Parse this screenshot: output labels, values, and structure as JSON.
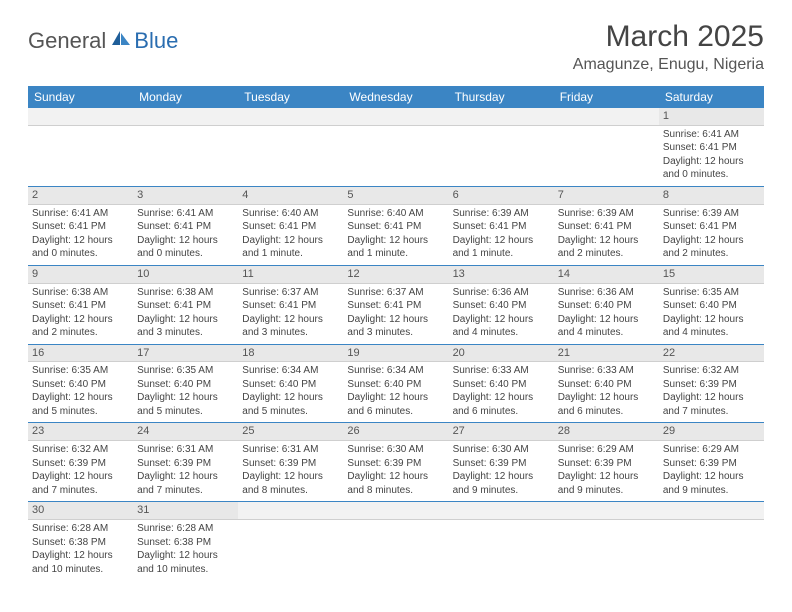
{
  "logo": {
    "text1": "General",
    "text2": "Blue"
  },
  "title": "March 2025",
  "location": "Amagunze, Enugu, Nigeria",
  "colors": {
    "header_bg": "#3b85c4",
    "header_text": "#ffffff",
    "cell_border": "#3b85c4",
    "daynum_bg": "#e8e8e8",
    "logo_blue": "#2a6db0"
  },
  "day_labels": [
    "Sunday",
    "Monday",
    "Tuesday",
    "Wednesday",
    "Thursday",
    "Friday",
    "Saturday"
  ],
  "weeks": [
    [
      {
        "blank": true
      },
      {
        "blank": true
      },
      {
        "blank": true
      },
      {
        "blank": true
      },
      {
        "blank": true
      },
      {
        "blank": true
      },
      {
        "num": "1",
        "sunrise": "Sunrise: 6:41 AM",
        "sunset": "Sunset: 6:41 PM",
        "daylight1": "Daylight: 12 hours",
        "daylight2": "and 0 minutes."
      }
    ],
    [
      {
        "num": "2",
        "sunrise": "Sunrise: 6:41 AM",
        "sunset": "Sunset: 6:41 PM",
        "daylight1": "Daylight: 12 hours",
        "daylight2": "and 0 minutes."
      },
      {
        "num": "3",
        "sunrise": "Sunrise: 6:41 AM",
        "sunset": "Sunset: 6:41 PM",
        "daylight1": "Daylight: 12 hours",
        "daylight2": "and 0 minutes."
      },
      {
        "num": "4",
        "sunrise": "Sunrise: 6:40 AM",
        "sunset": "Sunset: 6:41 PM",
        "daylight1": "Daylight: 12 hours",
        "daylight2": "and 1 minute."
      },
      {
        "num": "5",
        "sunrise": "Sunrise: 6:40 AM",
        "sunset": "Sunset: 6:41 PM",
        "daylight1": "Daylight: 12 hours",
        "daylight2": "and 1 minute."
      },
      {
        "num": "6",
        "sunrise": "Sunrise: 6:39 AM",
        "sunset": "Sunset: 6:41 PM",
        "daylight1": "Daylight: 12 hours",
        "daylight2": "and 1 minute."
      },
      {
        "num": "7",
        "sunrise": "Sunrise: 6:39 AM",
        "sunset": "Sunset: 6:41 PM",
        "daylight1": "Daylight: 12 hours",
        "daylight2": "and 2 minutes."
      },
      {
        "num": "8",
        "sunrise": "Sunrise: 6:39 AM",
        "sunset": "Sunset: 6:41 PM",
        "daylight1": "Daylight: 12 hours",
        "daylight2": "and 2 minutes."
      }
    ],
    [
      {
        "num": "9",
        "sunrise": "Sunrise: 6:38 AM",
        "sunset": "Sunset: 6:41 PM",
        "daylight1": "Daylight: 12 hours",
        "daylight2": "and 2 minutes."
      },
      {
        "num": "10",
        "sunrise": "Sunrise: 6:38 AM",
        "sunset": "Sunset: 6:41 PM",
        "daylight1": "Daylight: 12 hours",
        "daylight2": "and 3 minutes."
      },
      {
        "num": "11",
        "sunrise": "Sunrise: 6:37 AM",
        "sunset": "Sunset: 6:41 PM",
        "daylight1": "Daylight: 12 hours",
        "daylight2": "and 3 minutes."
      },
      {
        "num": "12",
        "sunrise": "Sunrise: 6:37 AM",
        "sunset": "Sunset: 6:41 PM",
        "daylight1": "Daylight: 12 hours",
        "daylight2": "and 3 minutes."
      },
      {
        "num": "13",
        "sunrise": "Sunrise: 6:36 AM",
        "sunset": "Sunset: 6:40 PM",
        "daylight1": "Daylight: 12 hours",
        "daylight2": "and 4 minutes."
      },
      {
        "num": "14",
        "sunrise": "Sunrise: 6:36 AM",
        "sunset": "Sunset: 6:40 PM",
        "daylight1": "Daylight: 12 hours",
        "daylight2": "and 4 minutes."
      },
      {
        "num": "15",
        "sunrise": "Sunrise: 6:35 AM",
        "sunset": "Sunset: 6:40 PM",
        "daylight1": "Daylight: 12 hours",
        "daylight2": "and 4 minutes."
      }
    ],
    [
      {
        "num": "16",
        "sunrise": "Sunrise: 6:35 AM",
        "sunset": "Sunset: 6:40 PM",
        "daylight1": "Daylight: 12 hours",
        "daylight2": "and 5 minutes."
      },
      {
        "num": "17",
        "sunrise": "Sunrise: 6:35 AM",
        "sunset": "Sunset: 6:40 PM",
        "daylight1": "Daylight: 12 hours",
        "daylight2": "and 5 minutes."
      },
      {
        "num": "18",
        "sunrise": "Sunrise: 6:34 AM",
        "sunset": "Sunset: 6:40 PM",
        "daylight1": "Daylight: 12 hours",
        "daylight2": "and 5 minutes."
      },
      {
        "num": "19",
        "sunrise": "Sunrise: 6:34 AM",
        "sunset": "Sunset: 6:40 PM",
        "daylight1": "Daylight: 12 hours",
        "daylight2": "and 6 minutes."
      },
      {
        "num": "20",
        "sunrise": "Sunrise: 6:33 AM",
        "sunset": "Sunset: 6:40 PM",
        "daylight1": "Daylight: 12 hours",
        "daylight2": "and 6 minutes."
      },
      {
        "num": "21",
        "sunrise": "Sunrise: 6:33 AM",
        "sunset": "Sunset: 6:40 PM",
        "daylight1": "Daylight: 12 hours",
        "daylight2": "and 6 minutes."
      },
      {
        "num": "22",
        "sunrise": "Sunrise: 6:32 AM",
        "sunset": "Sunset: 6:39 PM",
        "daylight1": "Daylight: 12 hours",
        "daylight2": "and 7 minutes."
      }
    ],
    [
      {
        "num": "23",
        "sunrise": "Sunrise: 6:32 AM",
        "sunset": "Sunset: 6:39 PM",
        "daylight1": "Daylight: 12 hours",
        "daylight2": "and 7 minutes."
      },
      {
        "num": "24",
        "sunrise": "Sunrise: 6:31 AM",
        "sunset": "Sunset: 6:39 PM",
        "daylight1": "Daylight: 12 hours",
        "daylight2": "and 7 minutes."
      },
      {
        "num": "25",
        "sunrise": "Sunrise: 6:31 AM",
        "sunset": "Sunset: 6:39 PM",
        "daylight1": "Daylight: 12 hours",
        "daylight2": "and 8 minutes."
      },
      {
        "num": "26",
        "sunrise": "Sunrise: 6:30 AM",
        "sunset": "Sunset: 6:39 PM",
        "daylight1": "Daylight: 12 hours",
        "daylight2": "and 8 minutes."
      },
      {
        "num": "27",
        "sunrise": "Sunrise: 6:30 AM",
        "sunset": "Sunset: 6:39 PM",
        "daylight1": "Daylight: 12 hours",
        "daylight2": "and 9 minutes."
      },
      {
        "num": "28",
        "sunrise": "Sunrise: 6:29 AM",
        "sunset": "Sunset: 6:39 PM",
        "daylight1": "Daylight: 12 hours",
        "daylight2": "and 9 minutes."
      },
      {
        "num": "29",
        "sunrise": "Sunrise: 6:29 AM",
        "sunset": "Sunset: 6:39 PM",
        "daylight1": "Daylight: 12 hours",
        "daylight2": "and 9 minutes."
      }
    ],
    [
      {
        "num": "30",
        "sunrise": "Sunrise: 6:28 AM",
        "sunset": "Sunset: 6:38 PM",
        "daylight1": "Daylight: 12 hours",
        "daylight2": "and 10 minutes."
      },
      {
        "num": "31",
        "sunrise": "Sunrise: 6:28 AM",
        "sunset": "Sunset: 6:38 PM",
        "daylight1": "Daylight: 12 hours",
        "daylight2": "and 10 minutes."
      },
      {
        "blank": true
      },
      {
        "blank": true
      },
      {
        "blank": true
      },
      {
        "blank": true
      },
      {
        "blank": true
      }
    ]
  ]
}
